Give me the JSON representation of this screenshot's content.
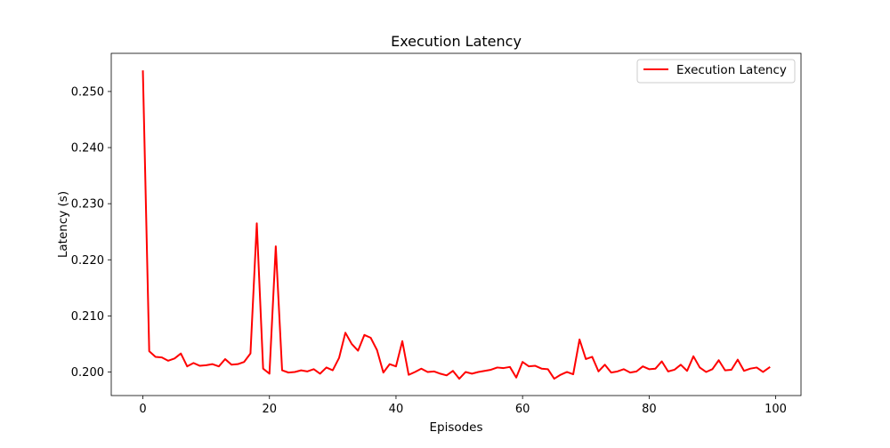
{
  "chart_data": {
    "type": "line",
    "title": "Execution Latency",
    "xlabel": "Episodes",
    "ylabel": "Latency (s)",
    "xlim": [
      -5,
      104
    ],
    "ylim": [
      0.1958,
      0.2568
    ],
    "xticks": [
      0,
      20,
      40,
      60,
      80,
      100
    ],
    "yticks": [
      0.2,
      0.21,
      0.22,
      0.23,
      0.24,
      0.25
    ],
    "xtick_labels": [
      "0",
      "20",
      "40",
      "60",
      "80",
      "100"
    ],
    "ytick_labels": [
      "0.200",
      "0.210",
      "0.220",
      "0.230",
      "0.240",
      "0.250"
    ],
    "grid": false,
    "legend_position": "top-right",
    "series": [
      {
        "name": "Execution Latency",
        "color": "#ff0000",
        "x": [
          0,
          1,
          2,
          3,
          4,
          5,
          6,
          7,
          8,
          9,
          10,
          11,
          12,
          13,
          14,
          15,
          16,
          17,
          18,
          19,
          20,
          21,
          22,
          23,
          24,
          25,
          26,
          27,
          28,
          29,
          30,
          31,
          32,
          33,
          34,
          35,
          36,
          37,
          38,
          39,
          40,
          41,
          42,
          43,
          44,
          45,
          46,
          47,
          48,
          49,
          50,
          51,
          52,
          53,
          54,
          55,
          56,
          57,
          58,
          59,
          60,
          61,
          62,
          63,
          64,
          65,
          66,
          67,
          68,
          69,
          70,
          71,
          72,
          73,
          74,
          75,
          76,
          77,
          78,
          79,
          80,
          81,
          82,
          83,
          84,
          85,
          86,
          87,
          88,
          89,
          90,
          91,
          92,
          93,
          94,
          95,
          96,
          97,
          98,
          99
        ],
        "values": [
          0.2536,
          0.2037,
          0.2027,
          0.2026,
          0.202,
          0.2024,
          0.2033,
          0.201,
          0.2016,
          0.2011,
          0.2012,
          0.2014,
          0.201,
          0.2023,
          0.2013,
          0.2014,
          0.2018,
          0.2033,
          0.2265,
          0.2006,
          0.1997,
          0.2224,
          0.2003,
          0.1999,
          0.2,
          0.2003,
          0.2001,
          0.2005,
          0.1997,
          0.2008,
          0.2003,
          0.2025,
          0.207,
          0.205,
          0.2038,
          0.2066,
          0.2061,
          0.2039,
          0.1999,
          0.2014,
          0.201,
          0.2055,
          0.1995,
          0.2,
          0.2006,
          0.2,
          0.2001,
          0.1997,
          0.1994,
          0.2002,
          0.1988,
          0.2,
          0.1997,
          0.2,
          0.2002,
          0.2004,
          0.2008,
          0.2007,
          0.2009,
          0.199,
          0.2018,
          0.201,
          0.2011,
          0.2006,
          0.2005,
          0.1988,
          0.1995,
          0.2,
          0.1996,
          0.2058,
          0.2023,
          0.2027,
          0.2001,
          0.2013,
          0.1999,
          0.2001,
          0.2005,
          0.1999,
          0.2001,
          0.201,
          0.2005,
          0.2006,
          0.2019,
          0.2001,
          0.2004,
          0.2013,
          0.2002,
          0.2028,
          0.2008,
          0.2,
          0.2005,
          0.2021,
          0.2003,
          0.2004,
          0.2022,
          0.2002,
          0.2006,
          0.2008,
          0.2,
          0.2008
        ]
      }
    ]
  }
}
